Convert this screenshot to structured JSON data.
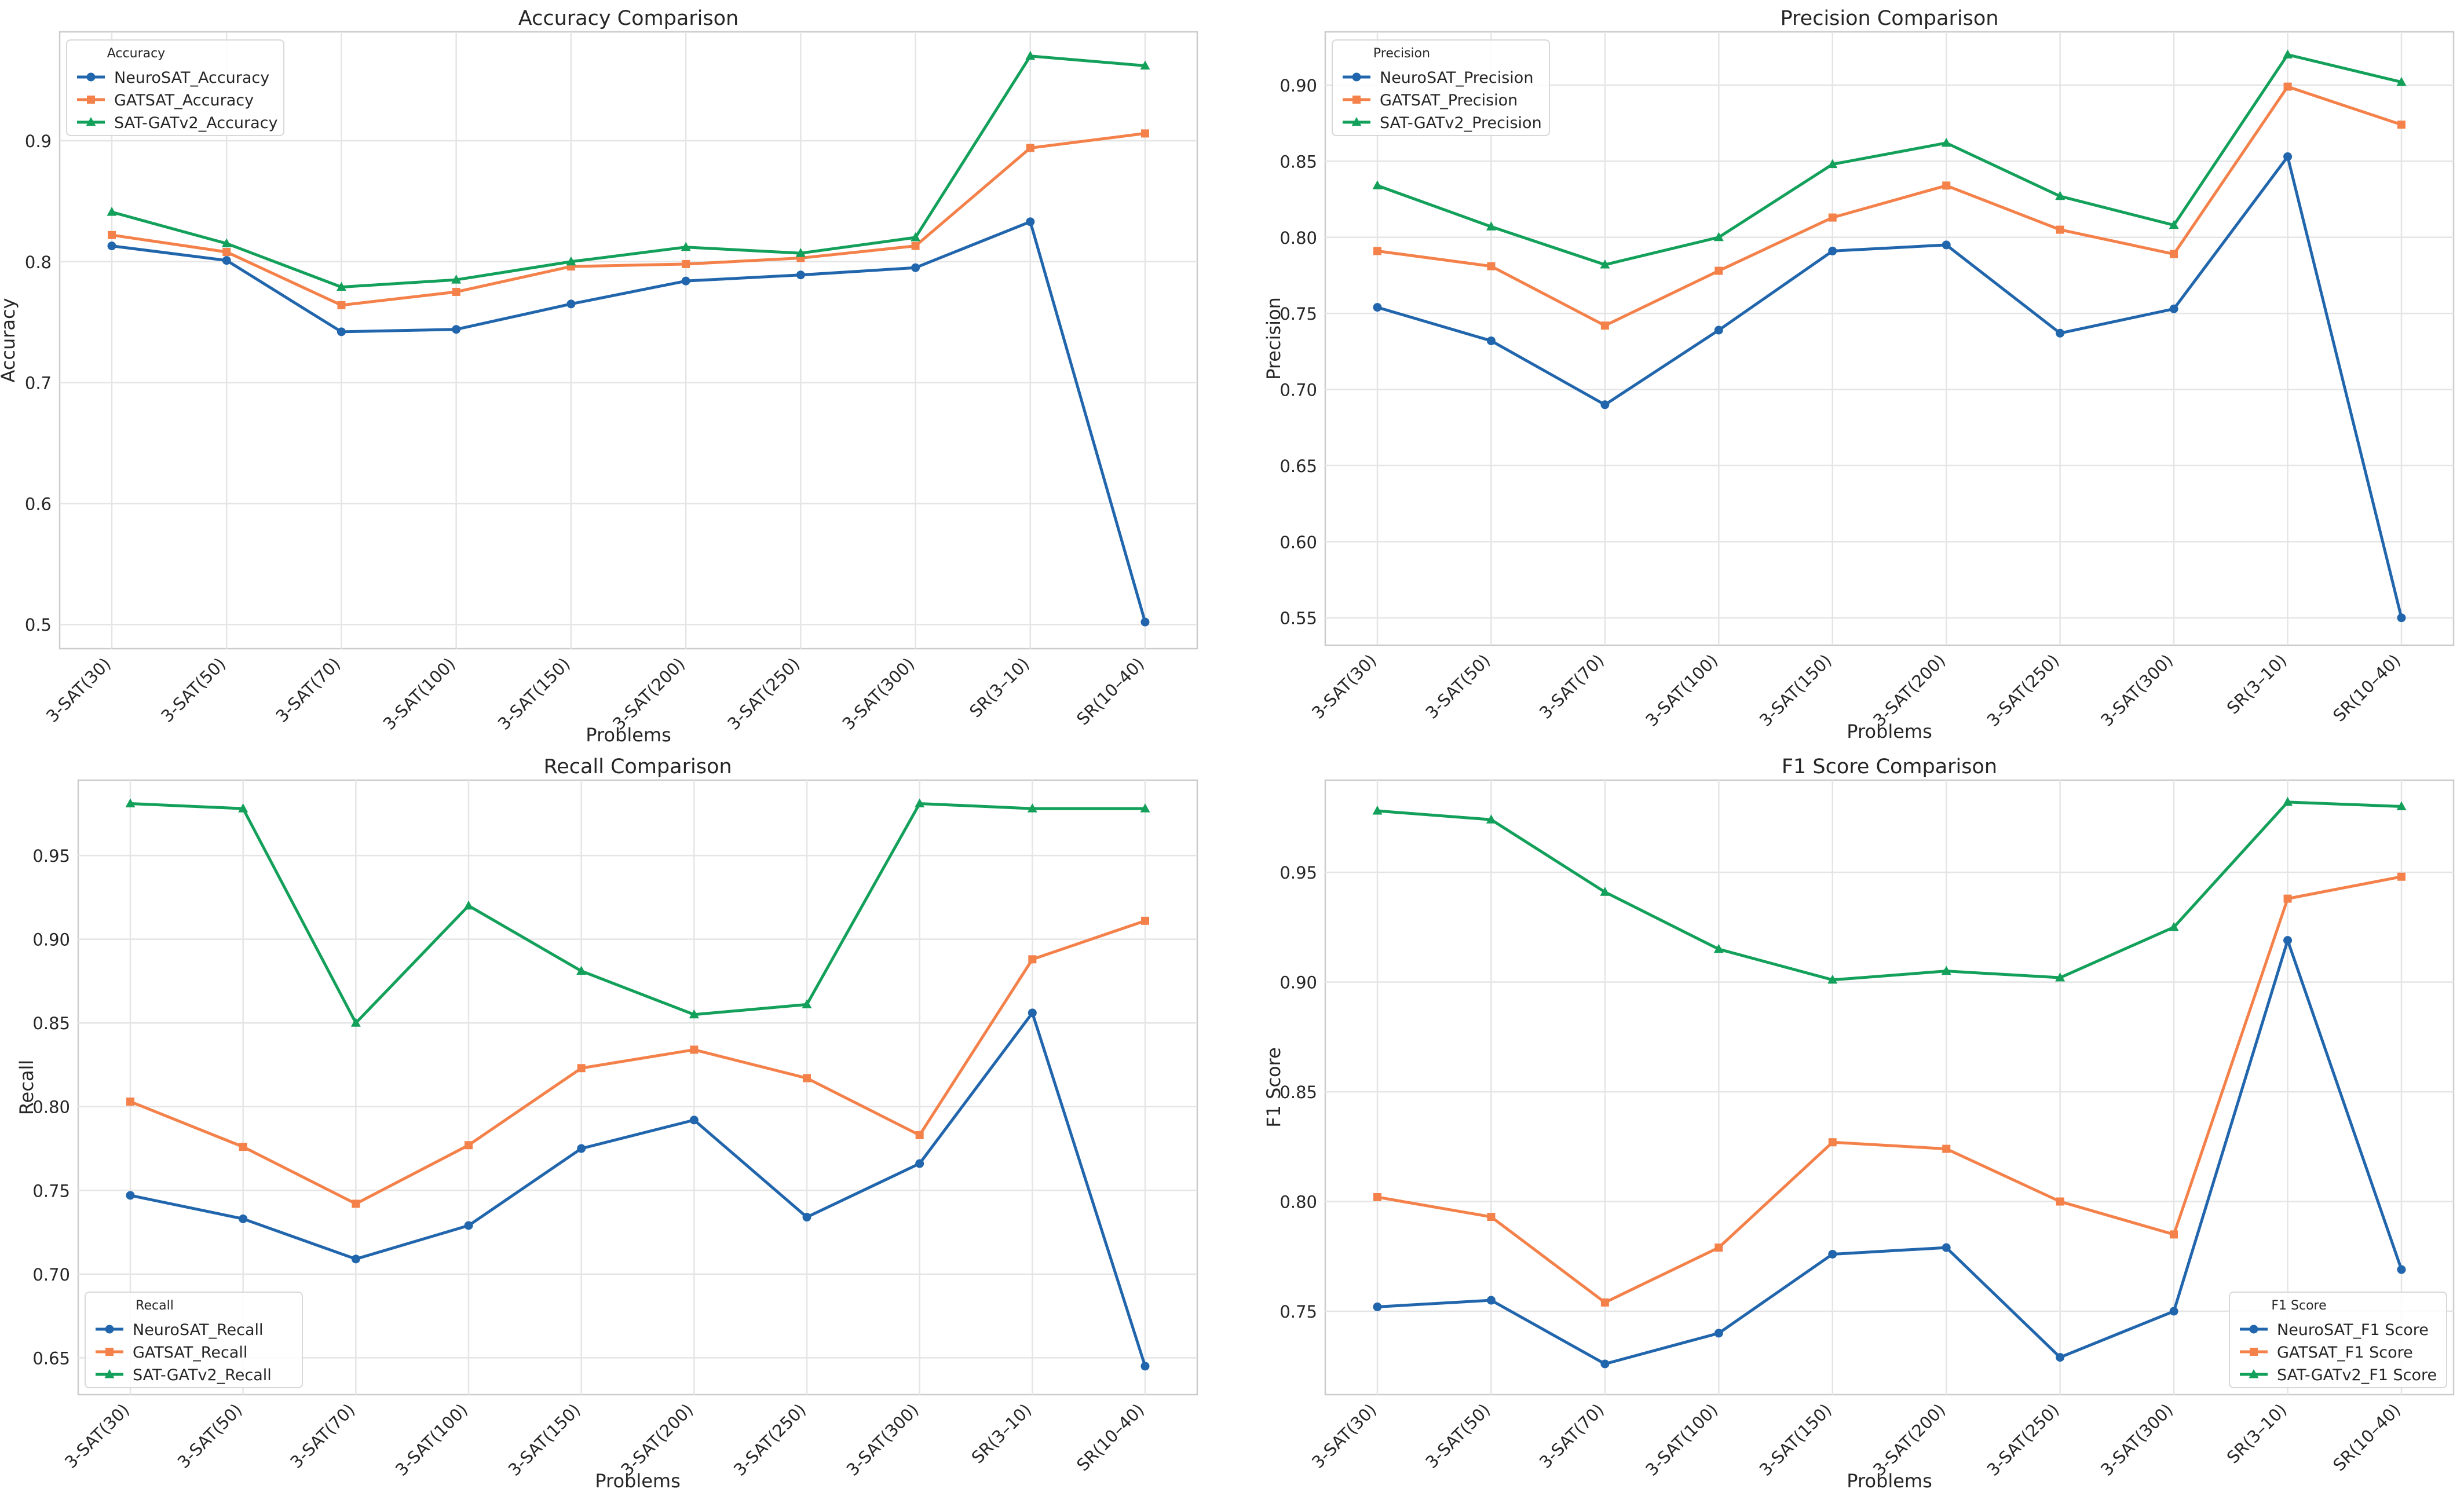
{
  "colors": {
    "neurosat": "#2166ac",
    "gatsat": "#f4814a",
    "satgat": "#13a05a",
    "grid": "#e5e5e5",
    "axis": "#cccccc",
    "text": "#262626"
  },
  "chart_data": [
    {
      "type": "line",
      "title": "Accuracy Comparison",
      "xlabel": "Problems",
      "ylabel": "Accuracy",
      "categories": [
        "3-SAT(30)",
        "3-SAT(50)",
        "3-SAT(70)",
        "3-SAT(100)",
        "3-SAT(150)",
        "3-SAT(200)",
        "3-SAT(250)",
        "3-SAT(300)",
        "SR(3–10)",
        "SR(10–40)"
      ],
      "ylim": [
        0.48,
        0.99
      ],
      "yticks": [
        0.5,
        0.6,
        0.7,
        0.8,
        0.9
      ],
      "ytick_labels": [
        "0.5",
        "0.6",
        "0.7",
        "0.8",
        "0.9"
      ],
      "grid": true,
      "legend": {
        "title": "Accuracy",
        "position": "top-left"
      },
      "series": [
        {
          "name": "NeuroSAT_Accuracy",
          "marker": "circle",
          "values": [
            0.813,
            0.801,
            0.742,
            0.744,
            0.765,
            0.784,
            0.789,
            0.795,
            0.833,
            0.502
          ]
        },
        {
          "name": "GATSAT_Accuracy",
          "marker": "square",
          "values": [
            0.822,
            0.808,
            0.764,
            0.775,
            0.796,
            0.798,
            0.803,
            0.813,
            0.894,
            0.906
          ]
        },
        {
          "name": "SAT-GATv2_Accuracy",
          "marker": "triangle",
          "values": [
            0.841,
            0.815,
            0.779,
            0.785,
            0.8,
            0.812,
            0.807,
            0.82,
            0.97,
            0.962
          ]
        }
      ]
    },
    {
      "type": "line",
      "title": "Precision Comparison",
      "xlabel": "Problems",
      "ylabel": "Precision",
      "categories": [
        "3-SAT(30)",
        "3-SAT(50)",
        "3-SAT(70)",
        "3-SAT(100)",
        "3-SAT(150)",
        "3-SAT(200)",
        "3-SAT(250)",
        "3-SAT(300)",
        "SR(3–10)",
        "SR(10–40)"
      ],
      "ylim": [
        0.532,
        0.935
      ],
      "yticks": [
        0.55,
        0.6,
        0.65,
        0.7,
        0.75,
        0.8,
        0.85,
        0.9
      ],
      "ytick_labels": [
        "0.55",
        "0.60",
        "0.65",
        "0.70",
        "0.75",
        "0.80",
        "0.85",
        "0.90"
      ],
      "grid": true,
      "legend": {
        "title": "Precision",
        "position": "top-left"
      },
      "series": [
        {
          "name": "NeuroSAT_Precision",
          "marker": "circle",
          "values": [
            0.754,
            0.732,
            0.69,
            0.739,
            0.791,
            0.795,
            0.737,
            0.753,
            0.853,
            0.55
          ]
        },
        {
          "name": "GATSAT_Precision",
          "marker": "square",
          "values": [
            0.791,
            0.781,
            0.742,
            0.778,
            0.813,
            0.834,
            0.805,
            0.789,
            0.899,
            0.874
          ]
        },
        {
          "name": "SAT-GATv2_Precision",
          "marker": "triangle",
          "values": [
            0.834,
            0.807,
            0.782,
            0.8,
            0.848,
            0.862,
            0.827,
            0.808,
            0.92,
            0.902
          ]
        }
      ]
    },
    {
      "type": "line",
      "title": "Recall Comparison",
      "xlabel": "Problems",
      "ylabel": "Recall",
      "categories": [
        "3-SAT(30)",
        "3-SAT(50)",
        "3-SAT(70)",
        "3-SAT(100)",
        "3-SAT(150)",
        "3-SAT(200)",
        "3-SAT(250)",
        "3-SAT(300)",
        "SR(3–10)",
        "SR(10–40)"
      ],
      "ylim": [
        0.628,
        0.995
      ],
      "yticks": [
        0.65,
        0.7,
        0.75,
        0.8,
        0.85,
        0.9,
        0.95
      ],
      "ytick_labels": [
        "0.65",
        "0.70",
        "0.75",
        "0.80",
        "0.85",
        "0.90",
        "0.95"
      ],
      "grid": true,
      "legend": {
        "title": "Recall",
        "position": "bottom-left"
      },
      "series": [
        {
          "name": "NeuroSAT_Recall",
          "marker": "circle",
          "values": [
            0.747,
            0.733,
            0.709,
            0.729,
            0.775,
            0.792,
            0.734,
            0.766,
            0.856,
            0.645
          ]
        },
        {
          "name": "GATSAT_Recall",
          "marker": "square",
          "values": [
            0.803,
            0.776,
            0.742,
            0.777,
            0.823,
            0.834,
            0.817,
            0.783,
            0.888,
            0.911
          ]
        },
        {
          "name": "SAT-GATv2_Recall",
          "marker": "triangle",
          "values": [
            0.981,
            0.978,
            0.85,
            0.92,
            0.881,
            0.855,
            0.861,
            0.981,
            0.978,
            0.978
          ]
        }
      ]
    },
    {
      "type": "line",
      "title": "F1 Score Comparison",
      "xlabel": "Problems",
      "ylabel": "F1 Score",
      "categories": [
        "3-SAT(30)",
        "3-SAT(50)",
        "3-SAT(70)",
        "3-SAT(100)",
        "3-SAT(150)",
        "3-SAT(200)",
        "3-SAT(250)",
        "3-SAT(300)",
        "SR(3–10)",
        "SR(10–40)"
      ],
      "ylim": [
        0.712,
        0.992
      ],
      "yticks": [
        0.75,
        0.8,
        0.85,
        0.9,
        0.95
      ],
      "ytick_labels": [
        "0.75",
        "0.80",
        "0.85",
        "0.90",
        "0.95"
      ],
      "grid": true,
      "legend": {
        "title": "F1 Score",
        "position": "bottom-right"
      },
      "series": [
        {
          "name": "NeuroSAT_F1 Score",
          "marker": "circle",
          "values": [
            0.752,
            0.755,
            0.726,
            0.74,
            0.776,
            0.779,
            0.729,
            0.75,
            0.919,
            0.769
          ]
        },
        {
          "name": "GATSAT_F1 Score",
          "marker": "square",
          "values": [
            0.802,
            0.793,
            0.754,
            0.779,
            0.827,
            0.824,
            0.8,
            0.785,
            0.938,
            0.948
          ]
        },
        {
          "name": "SAT-GATv2_F1 Score",
          "marker": "triangle",
          "values": [
            0.978,
            0.974,
            0.941,
            0.915,
            0.901,
            0.905,
            0.902,
            0.925,
            0.982,
            0.98
          ]
        }
      ]
    }
  ]
}
